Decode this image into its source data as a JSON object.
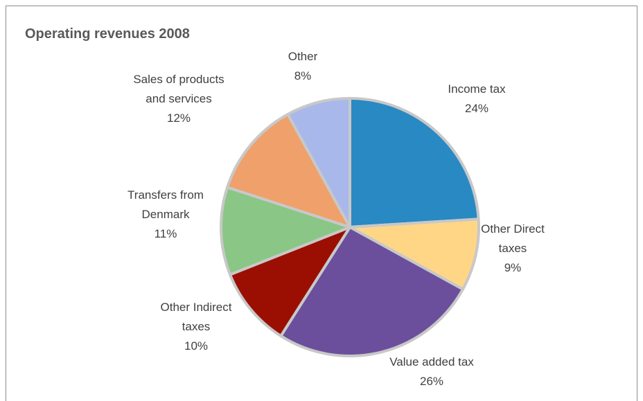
{
  "chart_data": {
    "type": "pie",
    "title": "Operating revenues 2008",
    "slices": [
      {
        "label": [
          "Income tax"
        ],
        "value": 24,
        "pct_label": "24%",
        "color": "#2989c3"
      },
      {
        "label": [
          "Other Direct",
          "taxes"
        ],
        "value": 9,
        "pct_label": "9%",
        "color": "#ffd686"
      },
      {
        "label": [
          "Value added tax"
        ],
        "value": 26,
        "pct_label": "26%",
        "color": "#6b4f9c"
      },
      {
        "label": [
          "Other Indirect",
          "taxes"
        ],
        "value": 10,
        "pct_label": "10%",
        "color": "#9b0f02"
      },
      {
        "label": [
          "Transfers from",
          "Denmark"
        ],
        "value": 11,
        "pct_label": "11%",
        "color": "#8ac686"
      },
      {
        "label": [
          "Sales of products",
          "and services"
        ],
        "value": 12,
        "pct_label": "12%",
        "color": "#f0a06a"
      },
      {
        "label": [
          "Other"
        ],
        "value": 8,
        "pct_label": "8%",
        "color": "#a9b8ea"
      }
    ],
    "start_angle_deg": 0,
    "direction": "clockwise",
    "edge_color": "#c8c8c8"
  }
}
